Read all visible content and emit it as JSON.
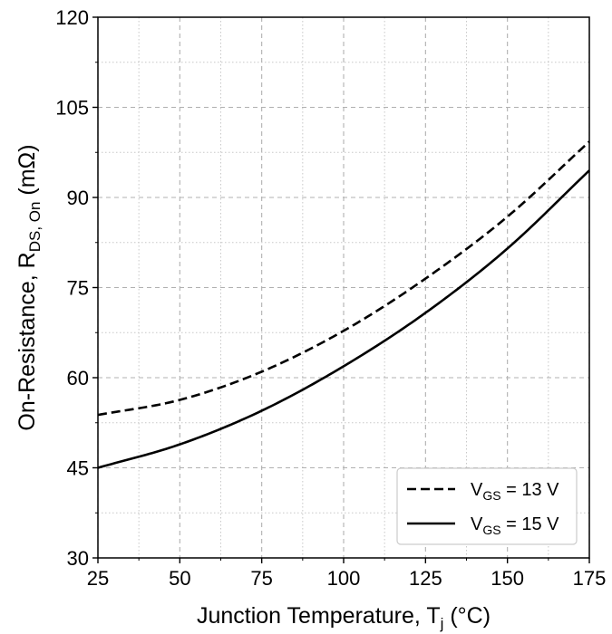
{
  "chart_data": {
    "type": "line",
    "xlabel": {
      "main": "Junction Temperature, T",
      "sub": "j",
      "tail": " (°C)"
    },
    "ylabel": {
      "main": "On-Resistance, R",
      "sub": "DS, On",
      "tail": " (mΩ)"
    },
    "xlim": [
      25,
      175
    ],
    "ylim": [
      30,
      120
    ],
    "xticks": [
      25,
      50,
      75,
      100,
      125,
      150,
      175
    ],
    "yticks": [
      30,
      45,
      60,
      75,
      90,
      105,
      120
    ],
    "xticks_minor": [
      37.5,
      62.5,
      87.5,
      112.5,
      137.5,
      162.5
    ],
    "yticks_minor": [
      37.5,
      52.5,
      67.5,
      82.5,
      97.5,
      112.5
    ],
    "grid": true,
    "legend_position": "bottom-right",
    "series": [
      {
        "name": {
          "main": "V",
          "sub": "GS",
          "tail": " = 13 V"
        },
        "style": "dashed",
        "color": "#000000",
        "x": [
          25,
          50,
          75,
          100,
          125,
          150,
          175
        ],
        "y": [
          53.8,
          56.3,
          61.0,
          67.8,
          76.5,
          86.8,
          99.3
        ]
      },
      {
        "name": {
          "main": "V",
          "sub": "GS",
          "tail": " = 15 V"
        },
        "style": "solid",
        "color": "#000000",
        "x": [
          25,
          50,
          75,
          100,
          125,
          150,
          175
        ],
        "y": [
          45.0,
          48.9,
          54.5,
          61.9,
          70.8,
          81.5,
          94.5
        ]
      }
    ]
  }
}
